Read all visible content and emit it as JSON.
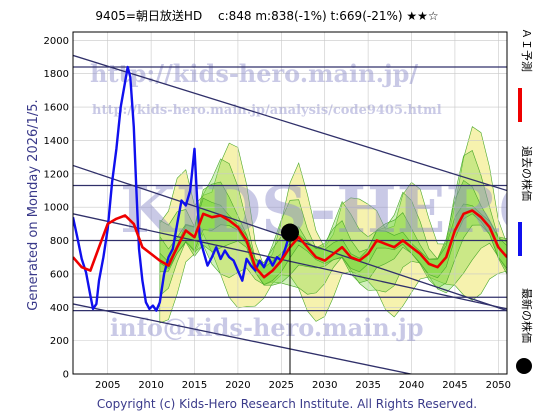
{
  "header": {
    "title": "9405=朝日放送HD　 c:848  m:838(-1%)  t:669(-21%)  ★★☆"
  },
  "side_legend": {
    "ai_forecast": "ＡＩ予測",
    "past_price": "過去の株価",
    "latest_price": "最新の株価"
  },
  "generated_note": "Generated on Monday 2026/1/5.",
  "copyright": "Copyright (c) Kids-Hero Research Institute. All Rights Reserved.",
  "watermarks": {
    "url_large": "http://kids-hero.main.jp/",
    "url_small": "http://kids-hero.main.jp/analysis/code9405.html",
    "email": "info@kids-hero.main.jp",
    "logo": "KIDS-HERO"
  },
  "colors": {
    "past": "#1010ee",
    "ai": "#ee0000",
    "band_green": "#7cd840",
    "band_yellow": "#f4f0a0",
    "trend": "#30306a",
    "latest": "#000000"
  },
  "chart_data": {
    "type": "line",
    "title": "9405=朝日放送HD　 c:848  m:838(-1%)  t:669(-21%)  ★★☆",
    "xlim": [
      2001,
      2051
    ],
    "ylim": [
      0,
      2050
    ],
    "x_ticks": [
      2005,
      2010,
      2015,
      2020,
      2025,
      2030,
      2035,
      2040,
      2045,
      2050
    ],
    "y_ticks": [
      0,
      200,
      400,
      600,
      800,
      1000,
      1200,
      1400,
      1600,
      1800,
      2000
    ],
    "grid": true,
    "series": [
      {
        "name": "過去の株価",
        "x": [
          2001,
          2001.5,
          2002,
          2002.5,
          2003,
          2003.3,
          2003.7,
          2004,
          2004.5,
          2005,
          2005.5,
          2006,
          2006.5,
          2007,
          2007.3,
          2007.6,
          2008,
          2008.3,
          2008.6,
          2009,
          2009.4,
          2009.8,
          2010.2,
          2010.6,
          2011,
          2011.5,
          2012,
          2012.5,
          2013,
          2013.5,
          2014,
          2014.5,
          2015,
          2015.3,
          2015.6,
          2016,
          2016.5,
          2017,
          2017.5,
          2018,
          2018.5,
          2019,
          2019.5,
          2020,
          2020.5,
          2021,
          2021.5,
          2022,
          2022.5,
          2023,
          2023.5,
          2024,
          2024.5,
          2025,
          2025.5,
          2026
        ],
        "values": [
          940,
          820,
          690,
          610,
          470,
          390,
          420,
          560,
          700,
          870,
          1150,
          1350,
          1600,
          1750,
          1840,
          1780,
          1480,
          1100,
          750,
          560,
          430,
          390,
          410,
          380,
          430,
          600,
          700,
          750,
          900,
          1040,
          1010,
          1100,
          1350,
          1050,
          820,
          740,
          650,
          700,
          760,
          690,
          740,
          700,
          680,
          620,
          560,
          690,
          650,
          620,
          680,
          640,
          700,
          650,
          700,
          680,
          760,
          848
        ]
      },
      {
        "name": "ＡＩ予測",
        "x": [
          2001,
          2002,
          2003,
          2004,
          2005,
          2006,
          2007,
          2008,
          2009,
          2010,
          2011,
          2012,
          2013,
          2014,
          2015,
          2016,
          2017,
          2018,
          2019,
          2020,
          2021,
          2022,
          2023,
          2024,
          2025,
          2026,
          2027,
          2028,
          2029,
          2030,
          2031,
          2032,
          2033,
          2034,
          2035,
          2036,
          2037,
          2038,
          2039,
          2040,
          2041,
          2042,
          2043,
          2044,
          2045,
          2046,
          2047,
          2048,
          2049,
          2050,
          2051
        ],
        "values": [
          700,
          640,
          620,
          760,
          900,
          930,
          950,
          900,
          760,
          720,
          680,
          650,
          760,
          860,
          820,
          960,
          940,
          950,
          920,
          880,
          800,
          640,
          580,
          620,
          680,
          760,
          820,
          760,
          700,
          680,
          720,
          760,
          700,
          680,
          720,
          800,
          780,
          760,
          800,
          760,
          720,
          660,
          640,
          700,
          860,
          960,
          980,
          940,
          880,
          760,
          700
        ]
      },
      {
        "name": "最新の株価",
        "x": [
          2026
        ],
        "values": [
          848
        ]
      }
    ],
    "trend_lines": [
      {
        "x": [
          2001,
          2051
        ],
        "values": [
          1910,
          1100
        ]
      },
      {
        "x": [
          2001,
          2051
        ],
        "values": [
          1250,
          380
        ]
      },
      {
        "x": [
          2001,
          2051
        ],
        "values": [
          960,
          390
        ]
      },
      {
        "x": [
          2001,
          2051
        ],
        "values": [
          420,
          -120
        ]
      }
    ],
    "horizontal_lines": [
      1840,
      1130,
      800,
      460,
      380
    ]
  }
}
